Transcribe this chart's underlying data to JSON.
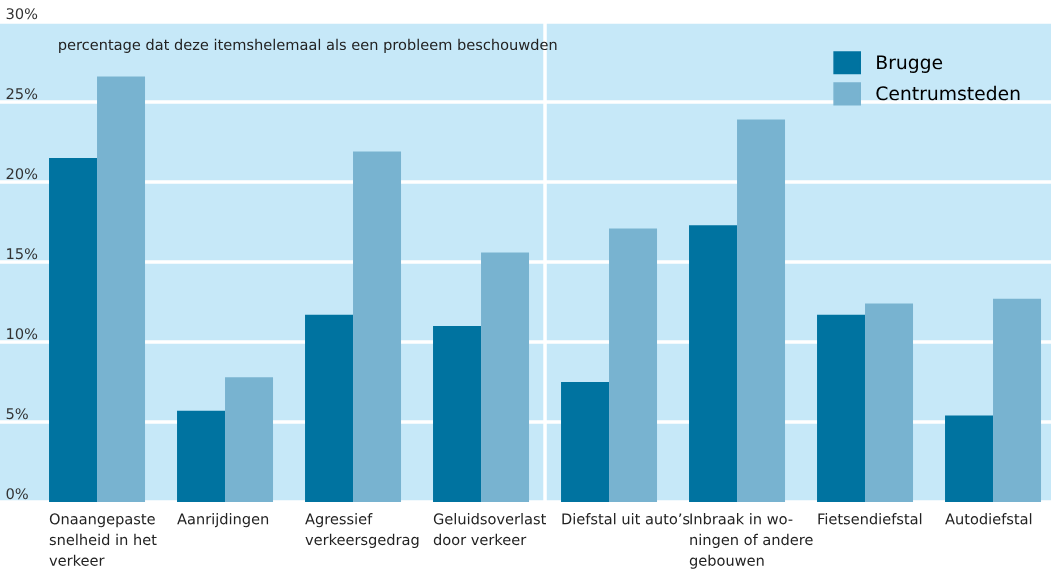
{
  "chart_data": {
    "type": "bar",
    "subtitle": "percentage dat deze itemshelemaal als een probleem beschouwden",
    "categories": [
      "Onaangepaste\nsnelheid in het\nverkeer",
      "Aanrijdingen",
      "Agressief\nverkeersgedrag",
      "Geluidsoverlast\ndoor verkeer",
      "Diefstal uit auto’s",
      "Inbraak in wo-\nningen of andere\ngebouwen",
      "Fietsendiefstal",
      "Autodiefstal"
    ],
    "series": [
      {
        "name": "Brugge",
        "color": "#0073a0",
        "values": [
          21.5,
          5.7,
          11.7,
          11.0,
          7.5,
          17.3,
          11.7,
          5.4
        ]
      },
      {
        "name": "Centrumsteden",
        "color": "#78b3d0",
        "values": [
          26.6,
          7.8,
          21.9,
          15.6,
          17.1,
          23.9,
          12.4,
          12.7
        ]
      }
    ],
    "ylim": [
      0,
      30
    ],
    "yticks": [
      {
        "value": 0,
        "label": "0%"
      },
      {
        "value": 5,
        "label": "5%"
      },
      {
        "value": 10,
        "label": "10%"
      },
      {
        "value": 15,
        "label": "15%"
      },
      {
        "value": 20,
        "label": "20%"
      },
      {
        "value": 25,
        "label": "25%"
      },
      {
        "value": 30,
        "label": "30%"
      }
    ],
    "grid": "y",
    "legend": "top right"
  }
}
